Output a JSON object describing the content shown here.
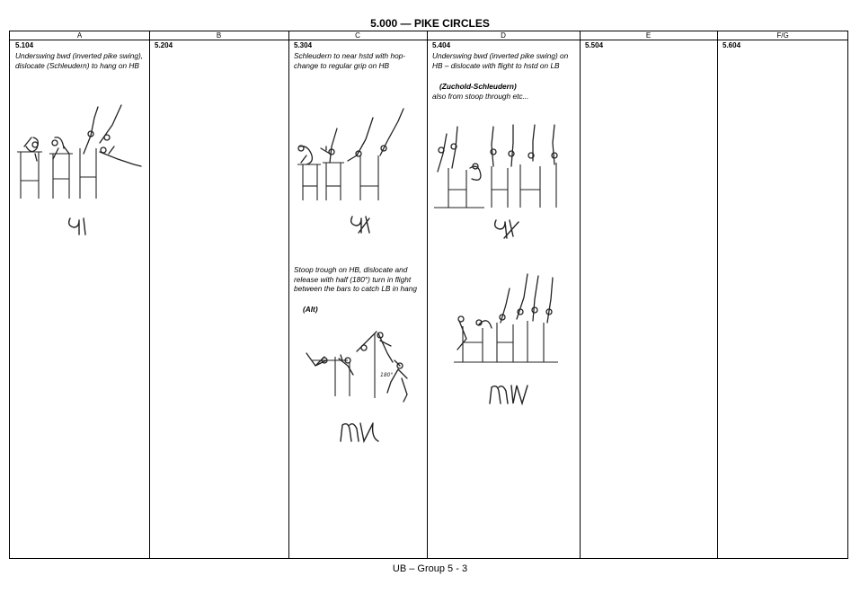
{
  "page": {
    "title": "5.000 — PIKE CIRCLES",
    "footer": "UB – Group 5 - 3"
  },
  "columns": [
    "A",
    "B",
    "C",
    "D",
    "E",
    "F/G"
  ],
  "cells": {
    "a": {
      "code": "5.104",
      "desc": "Underswing bwd (inverted pike swing), dislocate (Schleudern) to hang on HB",
      "symbol": "figure-symbol-a"
    },
    "b": {
      "code": "5.204"
    },
    "c": {
      "code": "5.304",
      "desc": "Schleudern to near hstd with hop-change to regular grip on HB",
      "symbol": "figure-symbol-c"
    },
    "c2": {
      "desc": "Stoop trough on HB, dislocate and release with half (180°) turn in flight between the bars to catch LB in hang",
      "name": "(Alt)",
      "angle_label": "180°"
    },
    "d": {
      "code": "5.404",
      "desc": "Underswing bwd (inverted pike swing) on HB – dislocate with flight to hstd on LB",
      "name": "(Zuchold-Schleudern)",
      "note": "also from stoop through etc..."
    },
    "e": {
      "code": "5.504"
    },
    "fg": {
      "code": "5.604"
    }
  }
}
